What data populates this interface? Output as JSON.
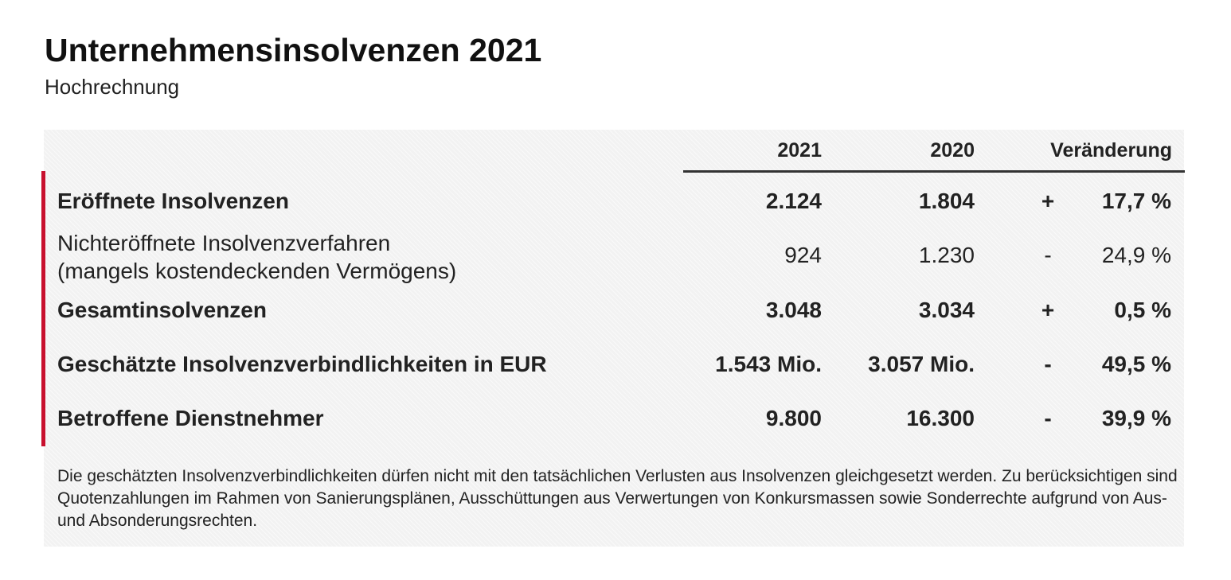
{
  "header": {
    "title": "Unternehmensinsolvenzen 2021",
    "subtitle": "Hochrechnung"
  },
  "table": {
    "columns": [
      "2021",
      "2020",
      "Veränderung"
    ],
    "rows": [
      {
        "label": "Eröffnete Insolvenzen",
        "label2": "",
        "v2021": "2.124",
        "v2020": "1.804",
        "sign": "+",
        "pct": "17,7 %",
        "bold": true
      },
      {
        "label": "Nichteröffnete Insolvenzverfahren",
        "label2": "(mangels kostendeckenden Vermögens)",
        "v2021": "924",
        "v2020": "1.230",
        "sign": "-",
        "pct": "24,9 %",
        "bold": false
      },
      {
        "label": "Gesamtinsolvenzen",
        "label2": "",
        "v2021": "3.048",
        "v2020": "3.034",
        "sign": "+",
        "pct": "0,5 %",
        "bold": true
      },
      {
        "label": "Geschätzte Insolvenzverbindlichkeiten in EUR",
        "label2": "",
        "v2021": "1.543 Mio.",
        "v2020": "3.057 Mio.",
        "sign": "-",
        "pct": "49,5 %",
        "bold": true
      },
      {
        "label": "Betroffene Dienstnehmer",
        "label2": "",
        "v2021": "9.800",
        "v2020": "16.300",
        "sign": "-",
        "pct": "39,9 %",
        "bold": true
      }
    ]
  },
  "footnote": "Die geschätzten Insolvenzverbindlichkeiten dürfen nicht mit den tatsächlichen Verlusten aus Insolvenzen gleichgesetzt werden. Zu berücksichtigen sind Quotenzahlungen im Rahmen von Sanierungsplänen, Ausschüttungen aus Verwertungen von Konkursmassen sowie Sonderrechte aufgrund von Aus- und Absonderungsrechten.",
  "colors": {
    "accent": "#c8102e",
    "panel": "#f2f2f2",
    "text": "#222222"
  }
}
